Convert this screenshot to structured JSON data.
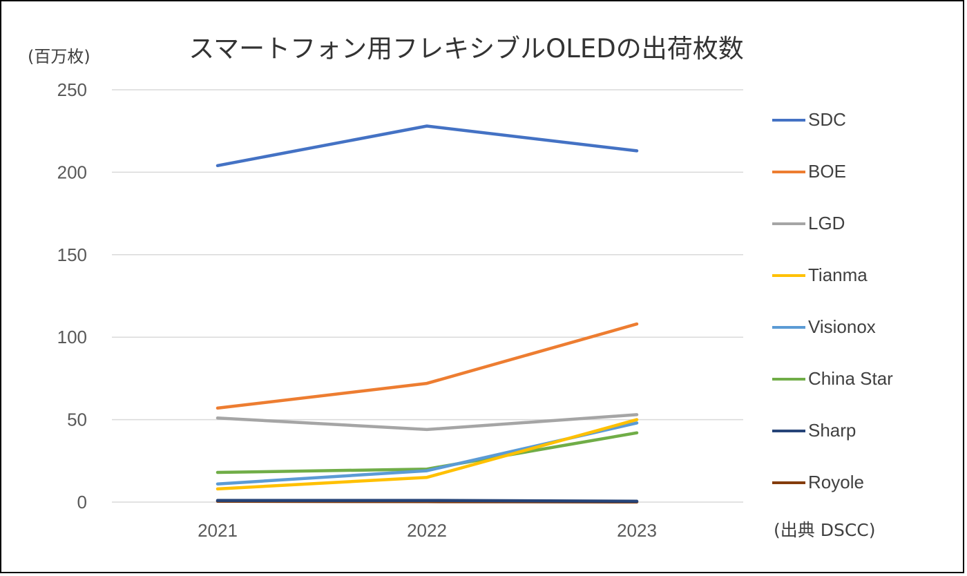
{
  "chart_data": {
    "type": "line",
    "title": "スマートフォン用フレキシブルOLEDの出荷枚数",
    "ylabel": "(百万枚)",
    "source": "(出典 DSCC)",
    "categories": [
      "2021",
      "2022",
      "2023"
    ],
    "ylim": [
      0,
      250
    ],
    "yticks": [
      0,
      50,
      100,
      150,
      200,
      250
    ],
    "grid": true,
    "legend_position": "right",
    "series": [
      {
        "name": "SDC",
        "color": "#4472C4",
        "values": [
          204,
          228,
          213
        ]
      },
      {
        "name": "BOE",
        "color": "#ED7D31",
        "values": [
          57,
          72,
          108
        ]
      },
      {
        "name": "LGD",
        "color": "#A5A5A5",
        "values": [
          51,
          44,
          53
        ]
      },
      {
        "name": "Tianma",
        "color": "#FFC000",
        "values": [
          8,
          15,
          50
        ]
      },
      {
        "name": "Visionox",
        "color": "#5B9BD5",
        "values": [
          11,
          19,
          48
        ]
      },
      {
        "name": "China Star",
        "color": "#70AD47",
        "values": [
          18,
          20,
          42
        ]
      },
      {
        "name": "Sharp",
        "color": "#264478",
        "values": [
          1,
          1,
          0.5
        ]
      },
      {
        "name": "Royole",
        "color": "#843C0C",
        "values": [
          0.5,
          0.3,
          0.1
        ]
      }
    ]
  }
}
